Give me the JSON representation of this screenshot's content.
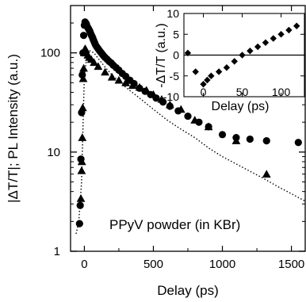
{
  "chart_data": [
    {
      "type": "scatter",
      "title": "",
      "xlabel": "Delay (ps)",
      "ylabel": "|ΔT/T|; PL Intensity (a.u.)",
      "xlim": [
        -100,
        1600
      ],
      "ylim": [
        1,
        300
      ],
      "yscale": "log",
      "grid": false,
      "legend": "none",
      "annotation": "PPyV powder (in KBr)",
      "x_ticks": [
        0,
        500,
        1000,
        1500
      ],
      "y_ticks": [
        1,
        10,
        100
      ],
      "series": [
        {
          "marker": "circle",
          "points": [
            [
              -35,
              1.9
            ],
            [
              -30,
              2.9
            ],
            [
              -25,
              8.5
            ],
            [
              -20,
              25
            ],
            [
              -15,
              60
            ],
            [
              -10,
              100
            ],
            [
              -5,
              150
            ],
            [
              0,
              190
            ],
            [
              5,
              205
            ],
            [
              10,
              200
            ],
            [
              15,
              195
            ],
            [
              20,
              185
            ],
            [
              25,
              180
            ],
            [
              30,
              175
            ],
            [
              35,
              170
            ],
            [
              40,
              165
            ],
            [
              45,
              158
            ],
            [
              50,
              152
            ],
            [
              55,
              147
            ],
            [
              60,
              142
            ],
            [
              65,
              136
            ],
            [
              70,
              131
            ],
            [
              75,
              126
            ],
            [
              80,
              121
            ],
            [
              90,
              115
            ],
            [
              100,
              110
            ],
            [
              110,
              105
            ],
            [
              120,
              101
            ],
            [
              130,
              97
            ],
            [
              140,
              93
            ],
            [
              150,
              90
            ],
            [
              165,
              86
            ],
            [
              180,
              82
            ],
            [
              195,
              79
            ],
            [
              210,
              75
            ],
            [
              230,
              71
            ],
            [
              250,
              67
            ],
            [
              275,
              62
            ],
            [
              300,
              58
            ],
            [
              330,
              53
            ],
            [
              360,
              49
            ],
            [
              400,
              44
            ],
            [
              440,
              41
            ],
            [
              480,
              38
            ],
            [
              520,
              35
            ],
            [
              570,
              32
            ],
            [
              620,
              29
            ],
            [
              680,
              26
            ],
            [
              750,
              23
            ],
            [
              830,
              20
            ],
            [
              900,
              18
            ],
            [
              1000,
              15
            ],
            [
              1100,
              14
            ],
            [
              1200,
              13.5
            ],
            [
              1320,
              13
            ],
            [
              1550,
              12.5
            ]
          ]
        },
        {
          "marker": "triangle",
          "points": [
            [
              -25,
              3.4
            ],
            [
              -20,
              6.5
            ],
            [
              -18,
              8
            ],
            [
              -15,
              14
            ],
            [
              -12,
              28
            ],
            [
              -8,
              55
            ],
            [
              -5,
              70
            ],
            [
              0,
              100
            ],
            [
              5,
              110
            ],
            [
              10,
              108
            ],
            [
              15,
              100
            ],
            [
              25,
              95
            ],
            [
              35,
              90
            ],
            [
              50,
              86
            ],
            [
              70,
              80
            ],
            [
              100,
              73
            ],
            [
              150,
              64
            ],
            [
              200,
              57
            ],
            [
              250,
              53
            ],
            [
              300,
              50
            ],
            [
              350,
              47
            ],
            [
              400,
              45
            ],
            [
              450,
              42
            ],
            [
              500,
              38
            ],
            [
              560,
              34
            ],
            [
              620,
              30
            ],
            [
              700,
              27
            ],
            [
              800,
              21
            ],
            [
              900,
              18
            ],
            [
              1100,
              13
            ],
            [
              1320,
              6
            ]
          ]
        },
        {
          "marker": "line-dotted",
          "points": [
            [
              -60,
              1.5
            ],
            [
              -40,
              2
            ],
            [
              -20,
              5
            ],
            [
              0,
              60
            ],
            [
              20,
              95
            ],
            [
              40,
              105
            ],
            [
              70,
              100
            ],
            [
              100,
              88
            ],
            [
              150,
              72
            ],
            [
              200,
              60
            ],
            [
              300,
              45
            ],
            [
              400,
              35
            ],
            [
              500,
              27
            ],
            [
              600,
              21
            ],
            [
              700,
              17
            ],
            [
              800,
              14
            ],
            [
              900,
              11
            ],
            [
              1000,
              9
            ],
            [
              1100,
              7.6
            ],
            [
              1200,
              6.4
            ],
            [
              1300,
              5.4
            ],
            [
              1400,
              4.5
            ],
            [
              1500,
              3.8
            ],
            [
              1600,
              3.2
            ]
          ]
        }
      ]
    },
    {
      "type": "scatter",
      "title": "",
      "xlabel": "Delay (ps)",
      "ylabel": "-ΔT/T (a.u.)",
      "xlim": [
        -25,
        130
      ],
      "ylim": [
        -10,
        10
      ],
      "grid": false,
      "legend": "none",
      "x_ticks": [
        0,
        50,
        100
      ],
      "y_ticks": [
        -10,
        -5,
        0,
        5,
        10
      ],
      "zero_line": true,
      "series": [
        {
          "marker": "diamond",
          "points": [
            [
              -20,
              0.5
            ],
            [
              -10,
              -4
            ],
            [
              0,
              -7
            ],
            [
              5,
              -6
            ],
            [
              10,
              -5
            ],
            [
              20,
              -4
            ],
            [
              30,
              -3
            ],
            [
              40,
              -1.5
            ],
            [
              50,
              0
            ],
            [
              60,
              1
            ],
            [
              70,
              2
            ],
            [
              80,
              3
            ],
            [
              90,
              4
            ],
            [
              100,
              5
            ],
            [
              110,
              6
            ],
            [
              120,
              7
            ]
          ]
        }
      ]
    }
  ]
}
